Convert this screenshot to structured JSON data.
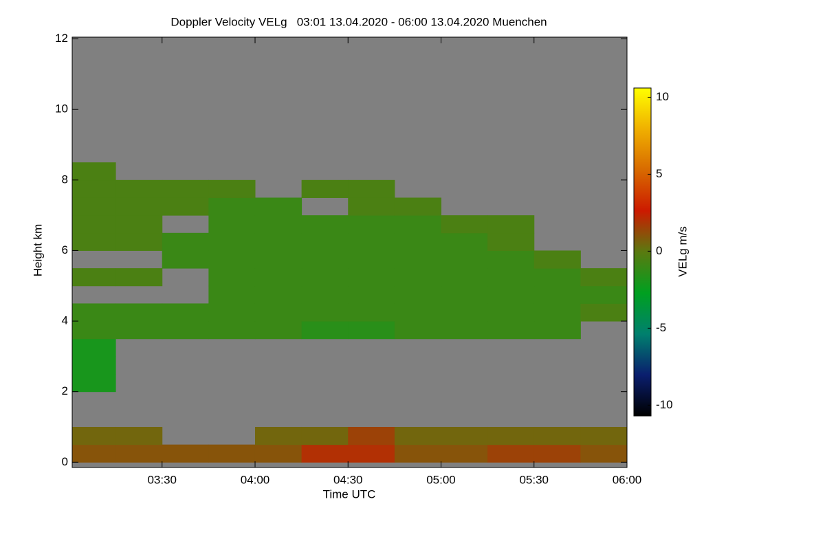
{
  "chart_data": {
    "type": "heatmap",
    "title": "Doppler Velocity VELg   03:01 13.04.2020 - 06:00 13.04.2020 Muenchen",
    "x_label": "Time UTC",
    "y_label": "Height km",
    "colorbar_label": "VELg m/s",
    "missing_color": "#808080",
    "colormap": [
      "#000000",
      "#0a1e6e",
      "#00806e",
      "#00a020",
      "#5a7a10",
      "#cc1a00",
      "#d86a00",
      "#f0b000",
      "#ffff00"
    ],
    "xlim": [
      3.0167,
      6.0
    ],
    "xticks": [
      {
        "value": 3.5,
        "label": "03:30"
      },
      {
        "value": 4.0,
        "label": "04:00"
      },
      {
        "value": 4.5,
        "label": "04:30"
      },
      {
        "value": 5.0,
        "label": "05:00"
      },
      {
        "value": 5.5,
        "label": "05:30"
      },
      {
        "value": 6.0,
        "label": "06:00"
      }
    ],
    "ylim": [
      -0.15,
      12.05
    ],
    "yticks": [
      0,
      2,
      4,
      6,
      8,
      10,
      12
    ],
    "zlim": [
      -10.7,
      10.6
    ],
    "zticks": [
      -10,
      -5,
      0,
      5,
      10
    ],
    "x": [
      3.125,
      3.375,
      3.625,
      3.875,
      4.125,
      4.375,
      4.625,
      4.875,
      5.125,
      5.375,
      5.625,
      5.875
    ],
    "y": [
      0.25,
      0.75,
      1.25,
      1.75,
      2.25,
      2.75,
      3.25,
      3.75,
      4.25,
      4.75,
      5.25,
      5.75,
      6.25,
      6.75,
      7.25,
      7.75,
      8.25,
      8.75,
      9.25,
      9.75,
      10.25,
      10.75,
      11.25,
      11.75
    ],
    "z": [
      [
        1,
        1,
        1,
        1,
        1,
        2,
        2,
        1,
        1,
        1.5,
        1.5,
        1
      ],
      [
        0.5,
        0.5,
        null,
        null,
        0.5,
        0.5,
        1.5,
        0.5,
        0.5,
        0.5,
        0.5,
        0.5
      ],
      [
        null,
        null,
        null,
        null,
        null,
        null,
        null,
        null,
        null,
        null,
        null,
        null
      ],
      [
        null,
        null,
        null,
        null,
        null,
        null,
        null,
        null,
        null,
        null,
        null,
        null
      ],
      [
        -2,
        null,
        null,
        null,
        null,
        null,
        null,
        null,
        null,
        null,
        null,
        null
      ],
      [
        -2,
        null,
        null,
        null,
        null,
        null,
        null,
        null,
        null,
        null,
        null,
        null
      ],
      [
        -2,
        null,
        null,
        null,
        null,
        null,
        null,
        null,
        null,
        null,
        null,
        null
      ],
      [
        -1,
        -1,
        -1,
        -1,
        -1,
        -1.5,
        -1.5,
        -1,
        -1,
        -1,
        -1,
        null
      ],
      [
        -1,
        -1,
        -1,
        -1,
        -1,
        -1,
        -1,
        -1,
        -1,
        -1,
        -1,
        -0.5
      ],
      [
        null,
        null,
        null,
        -1,
        -1,
        -1,
        -1,
        -1,
        -1,
        -1,
        -1,
        -1
      ],
      [
        -0.5,
        -0.5,
        null,
        -1,
        -1,
        -1,
        -1,
        -1,
        -1,
        -1,
        -1,
        -0.5
      ],
      [
        null,
        null,
        -1,
        -1,
        -1,
        -1,
        -1,
        -1,
        -1,
        -1,
        -0.5,
        null
      ],
      [
        -0.5,
        -0.5,
        -1,
        -1,
        -1,
        -1,
        -1,
        -1,
        -1,
        -0.5,
        null,
        null
      ],
      [
        -0.5,
        -0.5,
        null,
        -1,
        -1,
        -1,
        -1,
        -1,
        -0.5,
        -0.5,
        null,
        null
      ],
      [
        -0.5,
        -0.5,
        -0.5,
        -1,
        -1,
        null,
        -0.5,
        -0.5,
        null,
        null,
        null,
        null
      ],
      [
        -0.5,
        -0.5,
        -0.5,
        -0.5,
        null,
        -0.5,
        -0.5,
        null,
        null,
        null,
        null,
        null
      ],
      [
        -0.5,
        null,
        null,
        null,
        null,
        null,
        null,
        null,
        null,
        null,
        null,
        null
      ],
      [
        null,
        null,
        null,
        null,
        null,
        null,
        null,
        null,
        null,
        null,
        null,
        null
      ],
      [
        null,
        null,
        null,
        null,
        null,
        null,
        null,
        null,
        null,
        null,
        null,
        null
      ],
      [
        null,
        null,
        null,
        null,
        null,
        null,
        null,
        null,
        null,
        null,
        null,
        null
      ],
      [
        null,
        null,
        null,
        null,
        null,
        null,
        null,
        null,
        null,
        null,
        null,
        null
      ],
      [
        null,
        null,
        null,
        null,
        null,
        null,
        null,
        null,
        null,
        null,
        null,
        null
      ],
      [
        null,
        null,
        null,
        null,
        null,
        null,
        null,
        null,
        null,
        null,
        null,
        null
      ],
      [
        null,
        null,
        null,
        null,
        null,
        null,
        null,
        null,
        null,
        null,
        null,
        null
      ]
    ]
  }
}
